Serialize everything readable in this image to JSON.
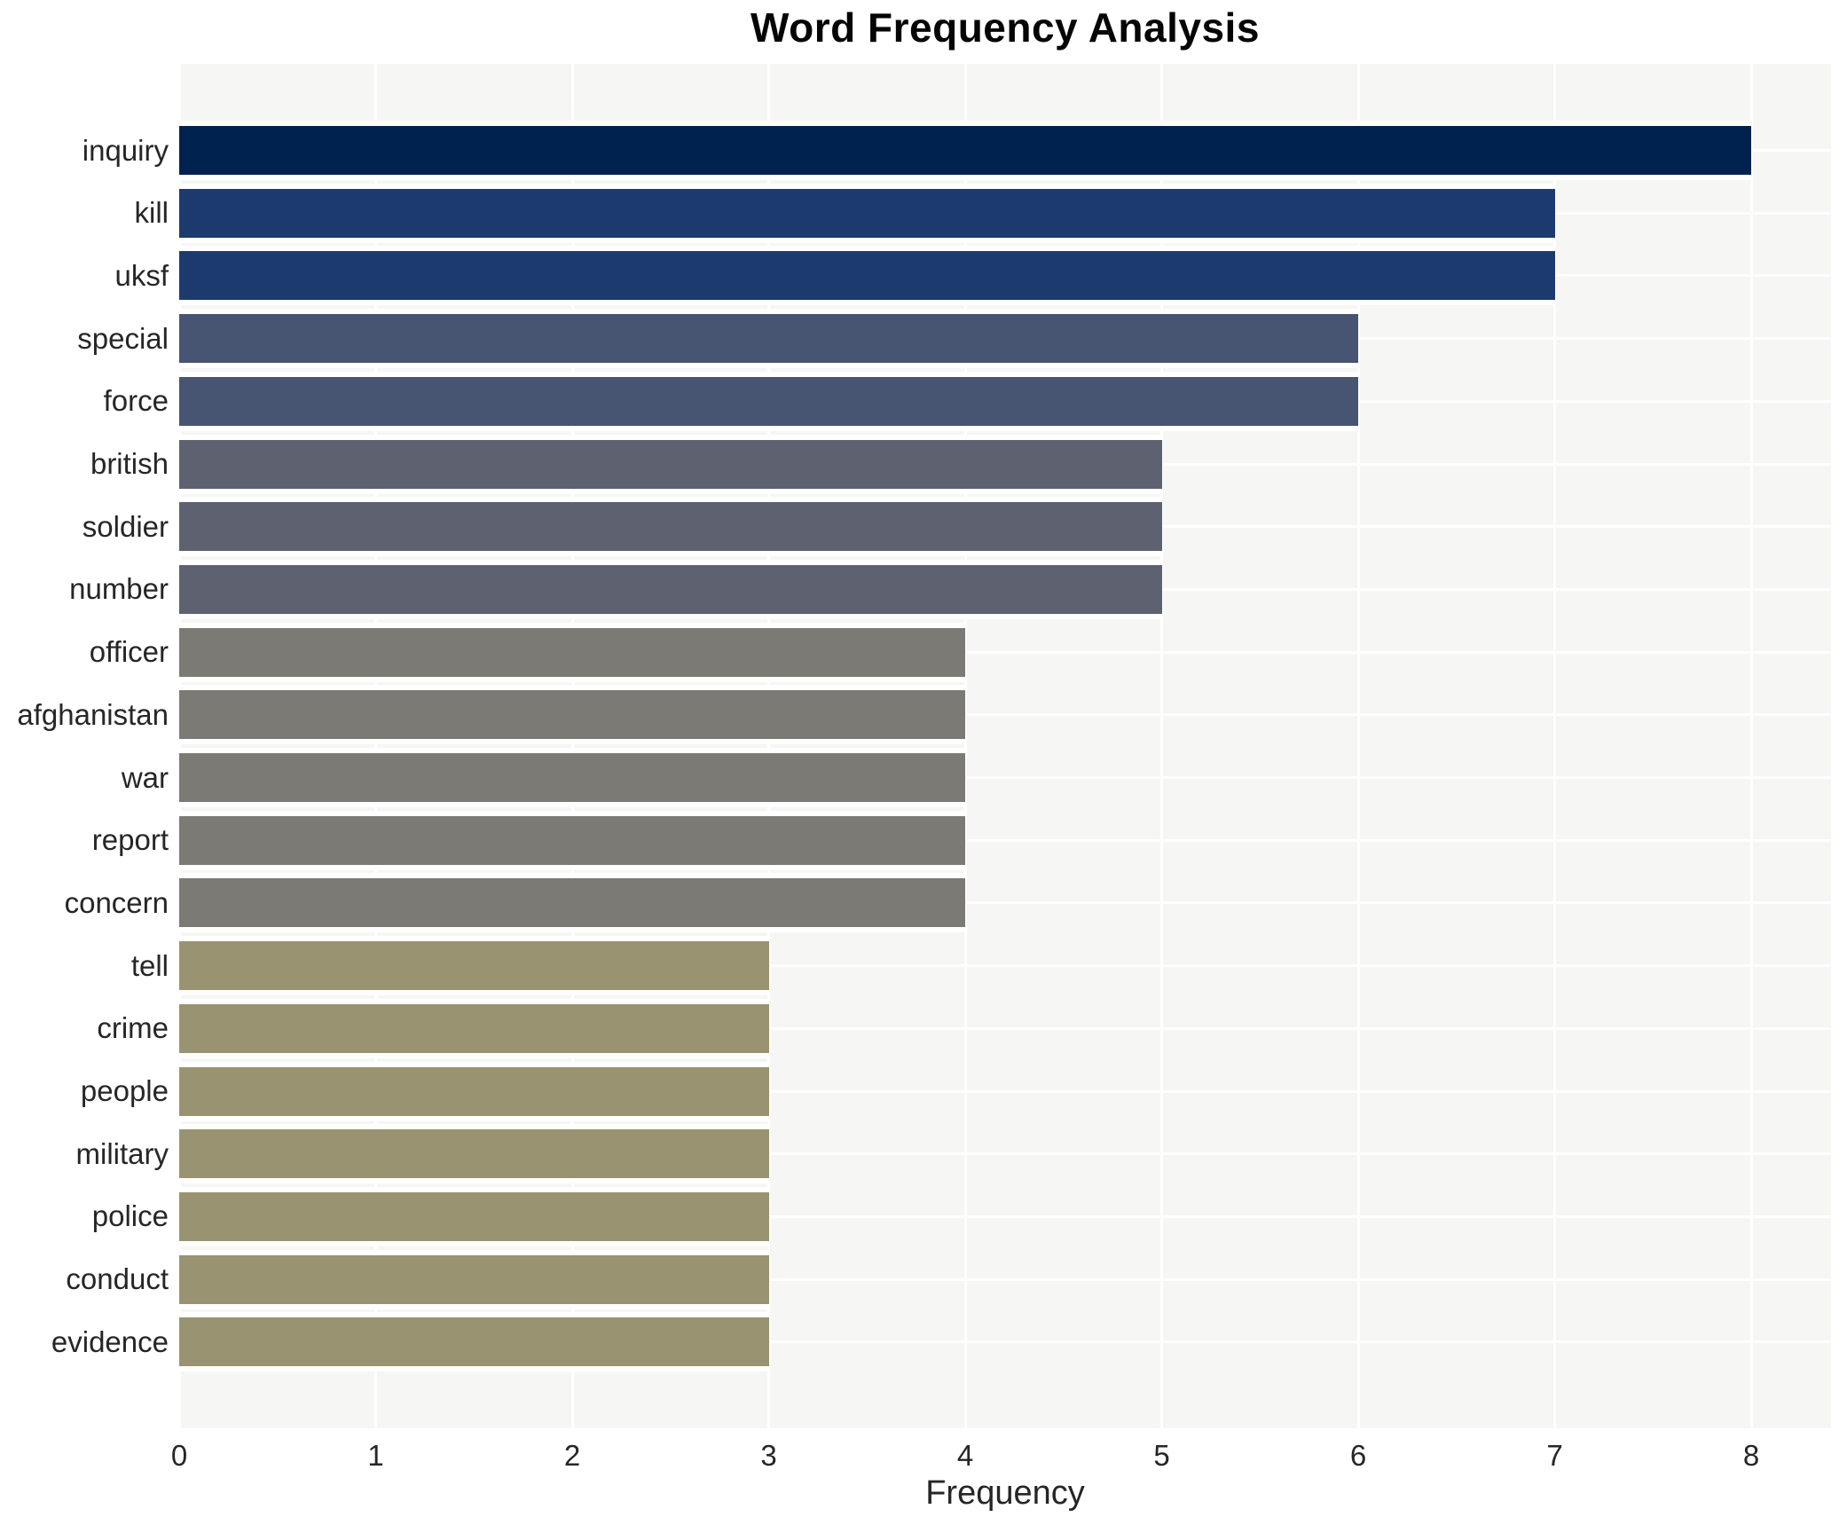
{
  "title": "Word Frequency Analysis",
  "xlabel": "Frequency",
  "chart_data": {
    "type": "bar",
    "orientation": "horizontal",
    "title": "Word Frequency Analysis",
    "xlabel": "Frequency",
    "ylabel": "",
    "categories": [
      "inquiry",
      "kill",
      "uksf",
      "special",
      "force",
      "british",
      "soldier",
      "number",
      "officer",
      "afghanistan",
      "war",
      "report",
      "concern",
      "tell",
      "crime",
      "people",
      "military",
      "police",
      "conduct",
      "evidence"
    ],
    "values": [
      8,
      7,
      7,
      6,
      6,
      5,
      5,
      5,
      4,
      4,
      4,
      4,
      4,
      3,
      3,
      3,
      3,
      3,
      3,
      3
    ],
    "xlim": [
      0,
      8
    ],
    "xticks": [
      0,
      1,
      2,
      3,
      4,
      5,
      6,
      7,
      8
    ],
    "grid": true,
    "legend": false,
    "plot_background": "#f6f6f5",
    "grid_color": "#ffffff",
    "value_colors": {
      "8": "#00224e",
      "7": "#1d3a6e",
      "6": "#475572",
      "5": "#5d6170",
      "4": "#7b7a74",
      "3": "#9a9371"
    }
  }
}
